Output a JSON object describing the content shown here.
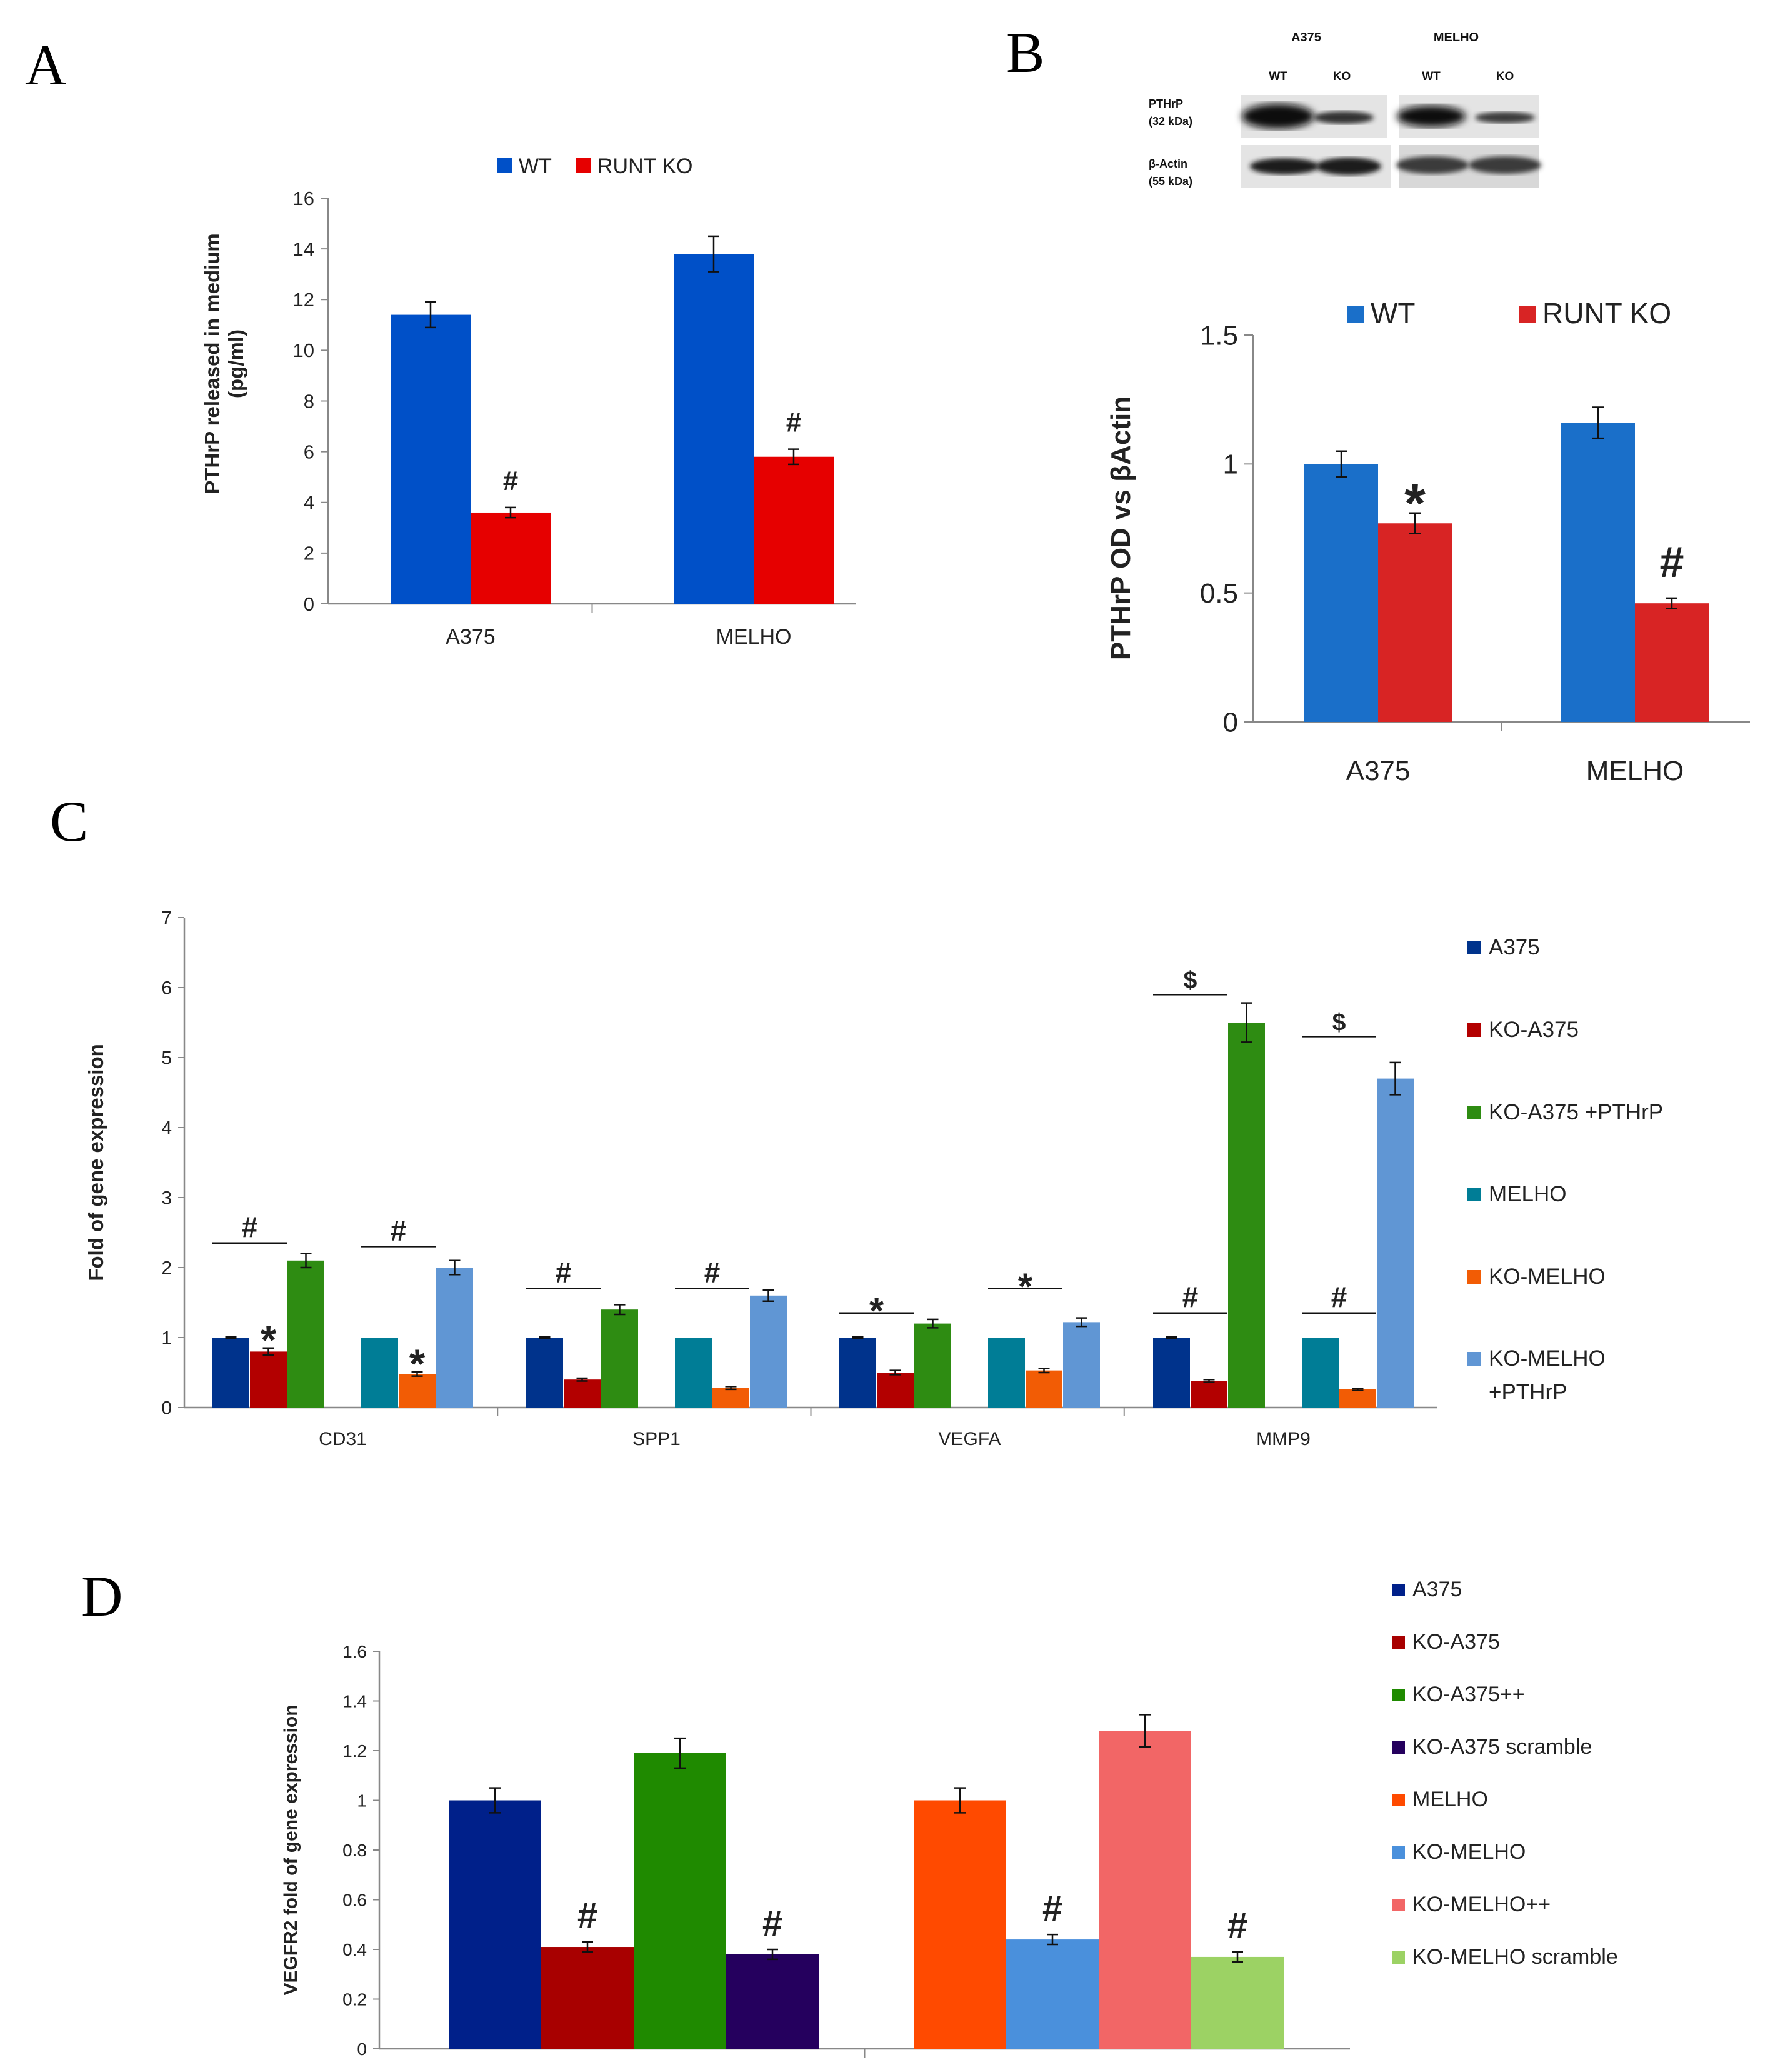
{
  "figure": {
    "panel_labels": {
      "A": "A",
      "B": "B",
      "C": "C",
      "D": "D"
    },
    "blot": {
      "cell_lines": [
        "A375",
        "MELHO"
      ],
      "lane_labels": [
        "WT",
        "KO",
        "WT",
        "KO"
      ],
      "row_labels": [
        {
          "name": "PTHrP",
          "kda": "(32 kDa)"
        },
        {
          "name": "β-Actin",
          "kda": "(55 kDa)"
        }
      ]
    }
  },
  "chart_data": [
    {
      "id": "A",
      "type": "bar",
      "title": "",
      "xlabel": "",
      "ylabel": [
        "PTHrP released in medium",
        "(pg/ml)"
      ],
      "categories": [
        "A375",
        "MELHO"
      ],
      "series": [
        {
          "name": "WT",
          "color": "#0050c8",
          "values": [
            11.4,
            13.8
          ],
          "errors": [
            0.5,
            0.7
          ],
          "marks": [
            "",
            ""
          ]
        },
        {
          "name": "RUNT KO",
          "color": "#e60000",
          "values": [
            3.6,
            5.8
          ],
          "errors": [
            0.2,
            0.3
          ],
          "marks": [
            "#",
            "#"
          ]
        }
      ],
      "ylim": [
        0,
        16
      ],
      "yticks": [
        0,
        2,
        4,
        6,
        8,
        10,
        12,
        14,
        16
      ],
      "legend": "top-center",
      "grid": false
    },
    {
      "id": "B",
      "type": "bar",
      "title": "",
      "xlabel": "",
      "ylabel": [
        "PTHrP OD  vs βActin"
      ],
      "categories": [
        "A375",
        "MELHO"
      ],
      "series": [
        {
          "name": "WT",
          "color": "#1a6fc9",
          "values": [
            1.0,
            1.16
          ],
          "errors": [
            0.05,
            0.06
          ],
          "marks": [
            "",
            ""
          ]
        },
        {
          "name": "RUNT KO",
          "color": "#d82424",
          "values": [
            0.77,
            0.46
          ],
          "errors": [
            0.04,
            0.02
          ],
          "marks": [
            "*",
            "#"
          ]
        }
      ],
      "ylim": [
        0,
        1.5
      ],
      "yticks": [
        "0",
        "0.5",
        "1",
        "1.5"
      ],
      "legend": "top-center",
      "grid": false
    },
    {
      "id": "C",
      "type": "bar",
      "title": "",
      "xlabel": "",
      "ylabel": [
        "Fold of gene expression"
      ],
      "categories": [
        "CD31",
        "SPP1",
        "VEGFA",
        "MMP9"
      ],
      "series": [
        {
          "name": "A375",
          "color": "#00338c",
          "values": [
            1.0,
            1.0,
            1.0,
            1.0
          ],
          "errors": [
            0.01,
            0.01,
            0.01,
            0.01
          ],
          "marks": [
            "",
            "",
            "",
            ""
          ]
        },
        {
          "name": "KO-A375",
          "color": "#b30000",
          "values": [
            0.8,
            0.4,
            0.5,
            0.38
          ],
          "errors": [
            0.05,
            0.02,
            0.03,
            0.02
          ],
          "marks": [
            "*",
            "",
            "",
            ""
          ]
        },
        {
          "name": "KO-A375 +PTHrP",
          "color": "#2e8c12",
          "values": [
            2.1,
            1.4,
            1.2,
            5.5
          ],
          "errors": [
            0.1,
            0.07,
            0.06,
            0.28
          ],
          "marks": [
            "",
            "",
            "",
            ""
          ]
        },
        {
          "name": "MELHO",
          "color": "#007d96",
          "values": [
            1.0,
            1.0,
            1.0,
            1.0
          ],
          "errors": [
            0.0,
            0.0,
            0.0,
            0.0
          ],
          "marks": [
            "",
            "",
            "",
            ""
          ]
        },
        {
          "name": "KO-MELHO",
          "color": "#f25c05",
          "values": [
            0.48,
            0.28,
            0.53,
            0.26
          ],
          "errors": [
            0.03,
            0.02,
            0.03,
            0.015
          ],
          "marks": [
            "*",
            "",
            "",
            ""
          ]
        },
        {
          "name": "KO-MELHO +PTHrP",
          "color": "#6096d4",
          "values": [
            2.0,
            1.6,
            1.22,
            4.7
          ],
          "errors": [
            0.1,
            0.08,
            0.06,
            0.23
          ],
          "marks": [
            "",
            "",
            "",
            ""
          ]
        }
      ],
      "significance": [
        {
          "category": 0,
          "from": 0,
          "to": 1,
          "y": 2.35,
          "mark": "#"
        },
        {
          "category": 0,
          "from": 3,
          "to": 4,
          "y": 2.3,
          "mark": "#"
        },
        {
          "category": 1,
          "from": 0,
          "to": 1,
          "y": 1.7,
          "mark": "#"
        },
        {
          "category": 1,
          "from": 3,
          "to": 4,
          "y": 1.7,
          "mark": "#"
        },
        {
          "category": 2,
          "from": 0,
          "to": 1,
          "y": 1.35,
          "mark": "*"
        },
        {
          "category": 2,
          "from": 3,
          "to": 4,
          "y": 1.7,
          "mark": "*"
        },
        {
          "category": 3,
          "from": 0,
          "to": 1,
          "y": 1.35,
          "mark": "#"
        },
        {
          "category": 3,
          "from": 3,
          "to": 4,
          "y": 1.35,
          "mark": "#"
        },
        {
          "category": 3,
          "from": 0,
          "to": 1,
          "y": 5.9,
          "mark": "$"
        },
        {
          "category": 3,
          "from": 3,
          "to": 4,
          "y": 5.3,
          "mark": "$"
        }
      ],
      "ylim": [
        0,
        7
      ],
      "yticks": [
        0,
        1,
        2,
        3,
        4,
        5,
        6,
        7
      ],
      "legend": "right",
      "grid": false
    },
    {
      "id": "D",
      "type": "bar",
      "title": "",
      "xlabel": "",
      "ylabel": [
        "VEGFR2 fold of gene expression"
      ],
      "categories": [
        "",
        ""
      ],
      "series": [
        {
          "name": "A375",
          "color": "#00208a",
          "values": [
            1.0,
            null
          ],
          "errors": [
            0.05,
            null
          ],
          "marks": [
            "",
            ""
          ]
        },
        {
          "name": "KO-A375",
          "color": "#a80000",
          "values": [
            0.41,
            null
          ],
          "errors": [
            0.02,
            null
          ],
          "marks": [
            "#",
            ""
          ]
        },
        {
          "name": "KO-A375++",
          "color": "#1f8a00",
          "values": [
            1.19,
            null
          ],
          "errors": [
            0.06,
            null
          ],
          "marks": [
            "",
            ""
          ]
        },
        {
          "name": "KO-A375 scramble",
          "color": "#25005e",
          "values": [
            0.38,
            null
          ],
          "errors": [
            0.02,
            null
          ],
          "marks": [
            "#",
            ""
          ]
        },
        {
          "name": "MELHO",
          "color": "#ff4a00",
          "values": [
            null,
            1.0
          ],
          "errors": [
            null,
            0.05
          ],
          "marks": [
            "",
            ""
          ]
        },
        {
          "name": "KO-MELHO",
          "color": "#4a90dc",
          "values": [
            null,
            0.44
          ],
          "errors": [
            null,
            0.02
          ],
          "marks": [
            "",
            "#"
          ]
        },
        {
          "name": "KO-MELHO++",
          "color": "#f26666",
          "values": [
            null,
            1.28
          ],
          "errors": [
            null,
            0.065
          ],
          "marks": [
            "",
            ""
          ]
        },
        {
          "name": "KO-MELHO scramble",
          "color": "#9cd264",
          "values": [
            null,
            0.37
          ],
          "errors": [
            null,
            0.02
          ],
          "marks": [
            "",
            "#"
          ]
        }
      ],
      "ylim": [
        0,
        1.6
      ],
      "yticks": [
        "0",
        "0.2",
        "0.4",
        "0.6",
        "0.8",
        "1",
        "1.2",
        "1.4",
        "1.6"
      ],
      "legend": "right",
      "grid": false
    }
  ]
}
